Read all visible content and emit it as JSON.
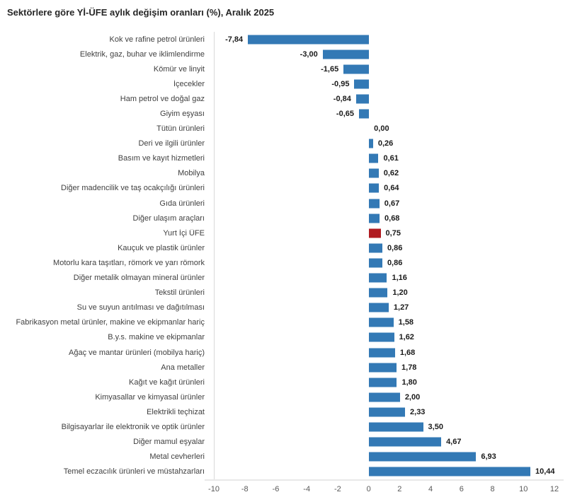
{
  "title": "Sektörlere göre Yİ-ÜFE aylık değişim oranları (%), Aralık 2025",
  "chart_data": {
    "type": "bar",
    "orientation": "horizontal",
    "title": "Sektörlere göre Yİ-ÜFE aylık değişim oranları (%), Aralık 2025",
    "xlabel": "",
    "ylabel": "",
    "xlim": [
      -10,
      12
    ],
    "x_ticks": [
      -10,
      -8,
      -6,
      -4,
      -2,
      0,
      2,
      4,
      6,
      8,
      10,
      12
    ],
    "grid": false,
    "legend": "none",
    "bar_color": "#3379B5",
    "highlight_color": "#B01B21",
    "highlight_category": "Yurt İçi ÜFE",
    "categories": [
      "Kok ve rafine petrol ürünleri",
      "Elektrik, gaz, buhar ve iklimlendirme",
      "Kömür ve linyit",
      "İçecekler",
      "Ham petrol ve doğal gaz",
      "Giyim eşyası",
      "Tütün ürünleri",
      "Deri ve ilgili ürünler",
      "Basım ve kayıt hizmetleri",
      "Mobilya",
      "Diğer madencilik ve taş ocakçılığı ürünleri",
      "Gıda ürünleri",
      "Diğer ulaşım araçları",
      "Yurt İçi ÜFE",
      "Kauçuk ve plastik ürünler",
      "Motorlu kara taşıtları, römork ve yarı römork",
      "Diğer metalik olmayan mineral ürünler",
      "Tekstil ürünleri",
      "Su ve suyun arıtılması ve dağıtılması",
      "Fabrikasyon metal ürünler, makine ve ekipmanlar hariç",
      "B.y.s. makine ve ekipmanlar",
      "Ağaç ve mantar ürünleri (mobilya hariç)",
      "Ana metaller",
      "Kağıt ve kağıt ürünleri",
      "Kimyasallar ve kimyasal ürünler",
      "Elektrikli teçhizat",
      "Bilgisayarlar ile elektronik ve optik ürünler",
      "Diğer mamul eşyalar",
      "Metal cevherleri",
      "Temel eczacılık ürünleri ve müstahzarları"
    ],
    "values": [
      -7.84,
      -3.0,
      -1.65,
      -0.95,
      -0.84,
      -0.65,
      0.0,
      0.26,
      0.61,
      0.62,
      0.64,
      0.67,
      0.68,
      0.75,
      0.86,
      0.86,
      1.16,
      1.2,
      1.27,
      1.58,
      1.62,
      1.68,
      1.78,
      1.8,
      2.0,
      2.33,
      3.5,
      4.67,
      6.93,
      10.44
    ],
    "value_labels": [
      "-7,84",
      "-3,00",
      "-1,65",
      "-0,95",
      "-0,84",
      "-0,65",
      "0,00",
      "0,26",
      "0,61",
      "0,62",
      "0,64",
      "0,67",
      "0,68",
      "0,75",
      "0,86",
      "0,86",
      "1,16",
      "1,20",
      "1,27",
      "1,58",
      "1,62",
      "1,68",
      "1,78",
      "1,80",
      "2,00",
      "2,33",
      "3,50",
      "4,67",
      "6,93",
      "10,44"
    ]
  }
}
